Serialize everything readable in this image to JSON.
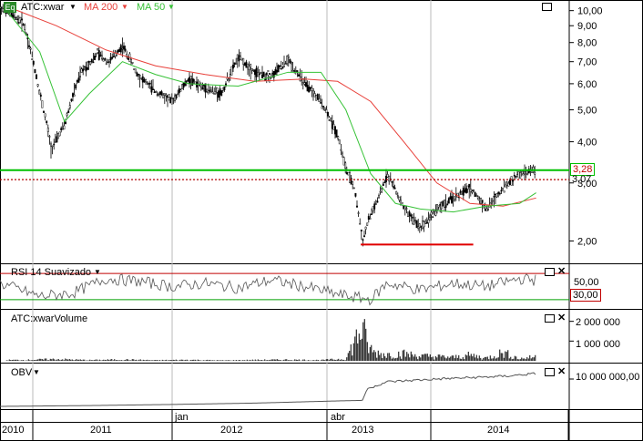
{
  "colors": {
    "background": "#ffffff",
    "price": "#000000",
    "ma200": "#e8403a",
    "ma50": "#36c236",
    "green_line": "#00c000",
    "red_dotted": "#b00000",
    "obv_line": "#555555",
    "rsi_line": "#555555"
  },
  "header": {
    "eq_badge": "Eq",
    "symbol": "ATC:xwar",
    "ma200_label": "MA 200",
    "ma50_label": "MA 50"
  },
  "price_panel": {
    "y_ticks": [
      "10,00",
      "9,00",
      "8,00",
      "7,00",
      "6,00",
      "5,00",
      "4,00",
      "3,00",
      "2,00"
    ],
    "horizontal_level_green": "3,28",
    "horizontal_level_dotted": "3,07",
    "support_line_value": 1.95
  },
  "rsi_panel": {
    "label": "RSI 14 Suavizado",
    "tick_top": "50,00",
    "tick_bottom": "30,00"
  },
  "volume_panel": {
    "label": "ATC:xwarVolume",
    "ticks": [
      "2 000 000",
      "1 000 000"
    ]
  },
  "obv_panel": {
    "label": "OBV",
    "ticks": [
      "10 000 000,00"
    ]
  },
  "x_axis": {
    "labels": [
      "2010",
      "2011",
      "jan",
      "2012",
      "abr",
      "2013",
      "2014"
    ]
  },
  "chart_data": [
    {
      "type": "line",
      "title": "ATC:xwar",
      "scale": "log",
      "ylim": [
        1.8,
        10.5
      ],
      "series": [
        {
          "name": "ATC:xwar",
          "x": [
            2010.96,
            2011.0,
            2011.1,
            2011.2,
            2011.27,
            2011.35,
            2011.45,
            2011.55,
            2011.62,
            2011.7,
            2011.8,
            2011.9,
            2012.0,
            2012.1,
            2012.2,
            2012.3,
            2012.4,
            2012.5,
            2012.6,
            2012.7,
            2012.8,
            2012.9,
            2013.0,
            2013.05,
            2013.1,
            2013.15,
            2013.2,
            2013.25,
            2013.3,
            2013.4,
            2013.5,
            2013.6,
            2013.7,
            2013.8,
            2013.9,
            2014.0,
            2014.1,
            2014.2
          ],
          "values": [
            10.3,
            9.9,
            9.2,
            5.6,
            3.8,
            4.5,
            6.5,
            7.4,
            7.0,
            7.8,
            6.3,
            5.7,
            5.3,
            6.2,
            5.8,
            5.6,
            7.2,
            6.5,
            6.3,
            7.1,
            6.0,
            5.3,
            4.2,
            3.3,
            2.9,
            2.0,
            2.4,
            2.7,
            3.2,
            2.5,
            2.2,
            2.5,
            2.7,
            2.9,
            2.5,
            2.9,
            3.2,
            3.3
          ]
        },
        {
          "name": "MA 200",
          "x": [
            2011.0,
            2011.3,
            2011.6,
            2011.9,
            2012.2,
            2012.5,
            2012.8,
            2013.0,
            2013.2,
            2013.4,
            2013.6,
            2013.8,
            2014.0,
            2014.2
          ],
          "values": [
            10.3,
            9.0,
            7.6,
            6.8,
            6.4,
            6.1,
            6.2,
            6.1,
            5.3,
            4.0,
            3.0,
            2.6,
            2.55,
            2.7
          ]
        },
        {
          "name": "MA 50",
          "x": [
            2011.0,
            2011.2,
            2011.35,
            2011.5,
            2011.7,
            2011.9,
            2012.1,
            2012.4,
            2012.7,
            2012.9,
            2013.05,
            2013.2,
            2013.35,
            2013.5,
            2013.7,
            2013.9,
            2014.1,
            2014.2
          ],
          "values": [
            10.0,
            7.5,
            4.6,
            5.6,
            7.0,
            6.4,
            6.0,
            5.9,
            6.5,
            6.5,
            5.0,
            3.2,
            2.6,
            2.5,
            2.45,
            2.55,
            2.6,
            2.8
          ]
        }
      ]
    },
    {
      "type": "line",
      "title": "RSI 14 Suavizado",
      "ylim": [
        20,
        80
      ],
      "series": [
        {
          "name": "RSI 14 Suavizado",
          "x": [
            2010.96,
            2011.2,
            2011.4,
            2011.6,
            2011.8,
            2012.0,
            2012.2,
            2012.4,
            2012.6,
            2012.8,
            2013.0,
            2013.2,
            2013.3,
            2013.5,
            2013.7,
            2013.9,
            2014.1,
            2014.2
          ],
          "values": [
            55,
            35,
            40,
            62,
            58,
            50,
            55,
            48,
            60,
            50,
            38,
            30,
            55,
            45,
            55,
            50,
            62,
            60
          ]
        }
      ]
    },
    {
      "type": "bar",
      "title": "ATC:xwarVolume",
      "ylim": [
        0,
        2400000
      ],
      "series": [
        {
          "name": "ATC:xwarVolume",
          "x": [
            2011.1,
            2011.3,
            2011.5,
            2011.7,
            2011.9,
            2012.1,
            2012.3,
            2012.5,
            2012.7,
            2012.9,
            2013.05,
            2013.15,
            2013.18,
            2013.22,
            2013.3,
            2013.4,
            2013.5,
            2013.6,
            2013.7,
            2013.8,
            2013.9,
            2014.0,
            2014.1,
            2014.2
          ],
          "values": [
            60000,
            120000,
            50000,
            90000,
            40000,
            70000,
            30000,
            60000,
            80000,
            50000,
            150000,
            2400000,
            1100000,
            600000,
            450000,
            500000,
            350000,
            300000,
            250000,
            400000,
            200000,
            600000,
            150000,
            300000
          ]
        }
      ]
    },
    {
      "type": "area",
      "title": "OBV",
      "ylim": [
        0,
        14000000
      ],
      "series": [
        {
          "name": "OBV",
          "x": [
            2010.96,
            2011.5,
            2012.0,
            2012.5,
            2013.0,
            2013.15,
            2013.18,
            2013.3,
            2013.6,
            2014.0,
            2014.2
          ],
          "values": [
            0,
            300000,
            700000,
            1200000,
            2000000,
            2200000,
            6500000,
            9000000,
            10000000,
            11000000,
            12000000
          ]
        }
      ]
    }
  ]
}
